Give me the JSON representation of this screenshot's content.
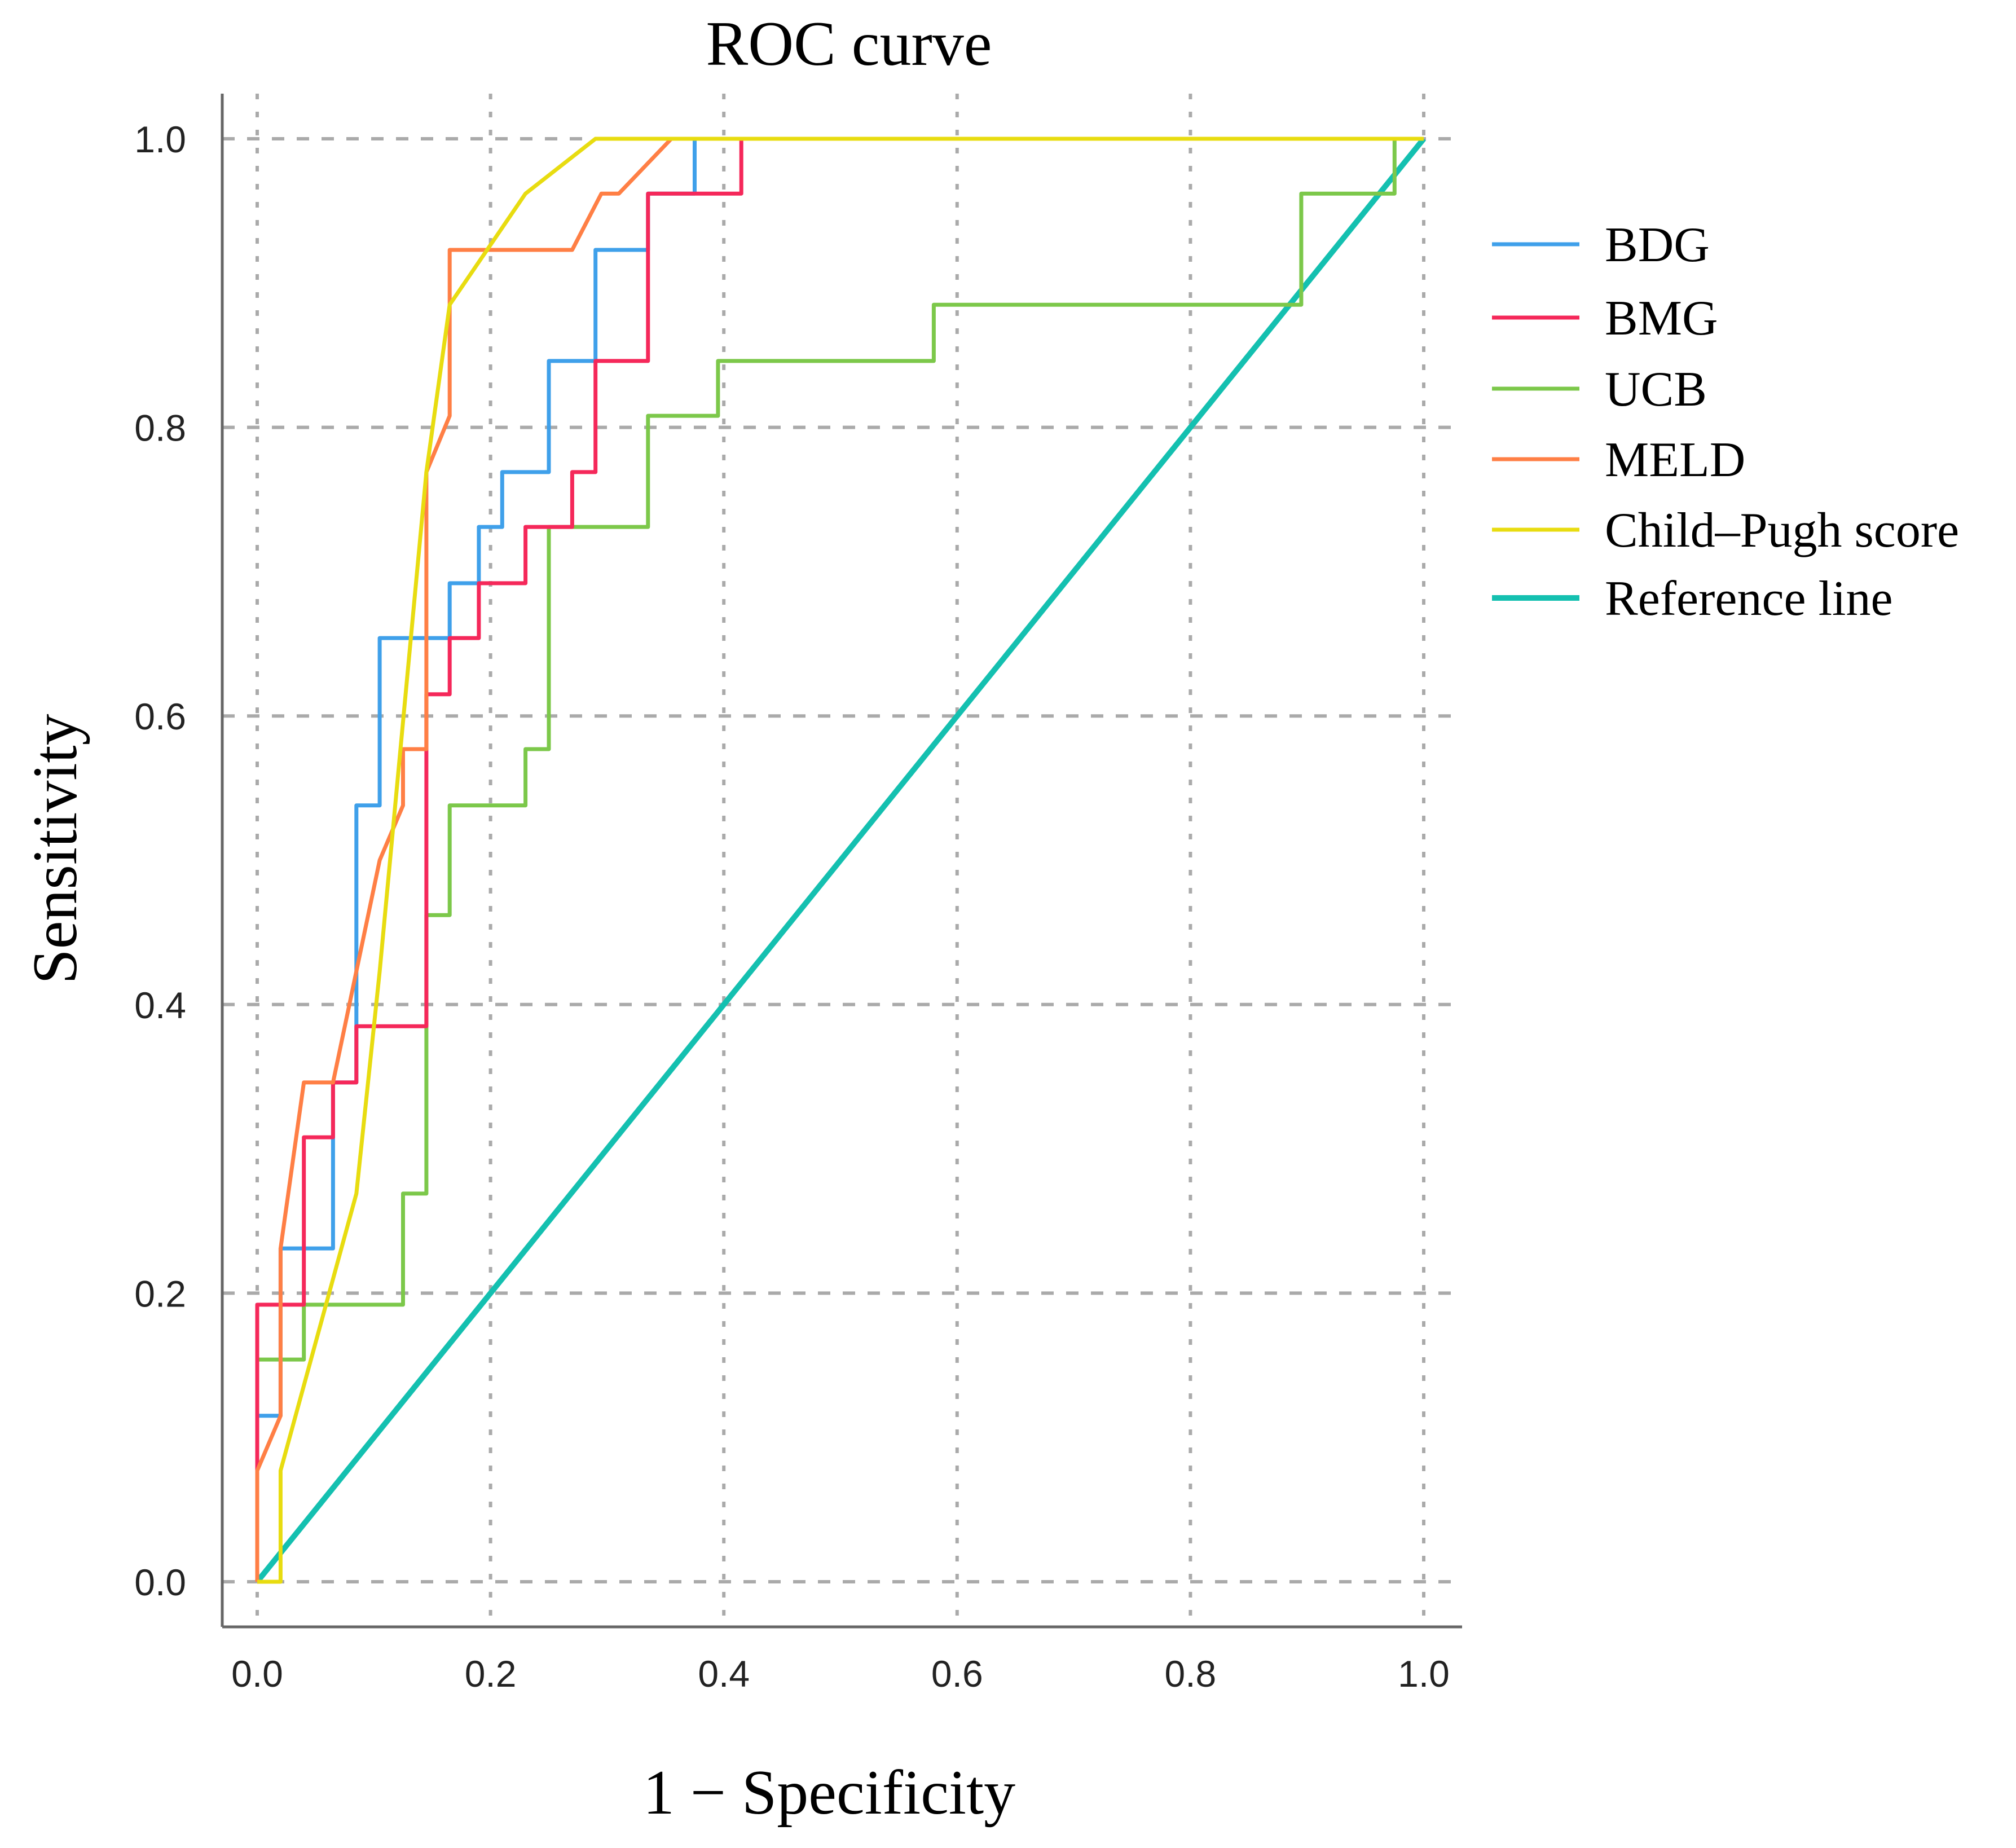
{
  "chart_data": {
    "type": "line",
    "title": "ROC curve",
    "xlabel": "1 − Specificity",
    "ylabel": "Sensitivity",
    "xlim": [
      0,
      1
    ],
    "ylim": [
      0,
      1
    ],
    "xticks": [
      "0.0",
      "0.2",
      "0.4",
      "0.6",
      "0.8",
      "1.0"
    ],
    "yticks": [
      "0.0",
      "0.2",
      "0.4",
      "0.6",
      "0.8",
      "1.0"
    ],
    "grid": true,
    "legend_position": "right",
    "series": [
      {
        "name": "BDG",
        "color": "#3fa0ea",
        "points": [
          [
            0,
            0
          ],
          [
            0,
            0.115
          ],
          [
            0.02,
            0.115
          ],
          [
            0.02,
            0.231
          ],
          [
            0.065,
            0.231
          ],
          [
            0.065,
            0.346
          ],
          [
            0.085,
            0.346
          ],
          [
            0.085,
            0.538
          ],
          [
            0.105,
            0.538
          ],
          [
            0.105,
            0.654
          ],
          [
            0.165,
            0.654
          ],
          [
            0.165,
            0.692
          ],
          [
            0.19,
            0.692
          ],
          [
            0.19,
            0.731
          ],
          [
            0.21,
            0.731
          ],
          [
            0.21,
            0.769
          ],
          [
            0.25,
            0.769
          ],
          [
            0.25,
            0.846
          ],
          [
            0.29,
            0.846
          ],
          [
            0.29,
            0.923
          ],
          [
            0.335,
            0.923
          ],
          [
            0.335,
            0.962
          ],
          [
            0.375,
            0.962
          ],
          [
            0.375,
            1
          ],
          [
            1,
            1
          ]
        ]
      },
      {
        "name": "BMG",
        "color": "#f5285a",
        "points": [
          [
            0,
            0
          ],
          [
            0,
            0.192
          ],
          [
            0.04,
            0.192
          ],
          [
            0.04,
            0.308
          ],
          [
            0.065,
            0.308
          ],
          [
            0.065,
            0.346
          ],
          [
            0.085,
            0.346
          ],
          [
            0.085,
            0.385
          ],
          [
            0.145,
            0.385
          ],
          [
            0.145,
            0.615
          ],
          [
            0.165,
            0.615
          ],
          [
            0.165,
            0.654
          ],
          [
            0.19,
            0.654
          ],
          [
            0.19,
            0.692
          ],
          [
            0.23,
            0.692
          ],
          [
            0.23,
            0.731
          ],
          [
            0.27,
            0.731
          ],
          [
            0.27,
            0.769
          ],
          [
            0.29,
            0.769
          ],
          [
            0.29,
            0.846
          ],
          [
            0.335,
            0.846
          ],
          [
            0.335,
            0.962
          ],
          [
            0.415,
            0.962
          ],
          [
            0.415,
            1
          ],
          [
            1,
            1
          ]
        ]
      },
      {
        "name": "UCB",
        "color": "#7cc84a",
        "points": [
          [
            0,
            0
          ],
          [
            0,
            0.154
          ],
          [
            0.04,
            0.154
          ],
          [
            0.04,
            0.192
          ],
          [
            0.125,
            0.192
          ],
          [
            0.125,
            0.269
          ],
          [
            0.145,
            0.269
          ],
          [
            0.145,
            0.462
          ],
          [
            0.165,
            0.462
          ],
          [
            0.165,
            0.538
          ],
          [
            0.23,
            0.538
          ],
          [
            0.23,
            0.577
          ],
          [
            0.25,
            0.577
          ],
          [
            0.25,
            0.731
          ],
          [
            0.335,
            0.731
          ],
          [
            0.335,
            0.808
          ],
          [
            0.395,
            0.808
          ],
          [
            0.395,
            0.846
          ],
          [
            0.58,
            0.846
          ],
          [
            0.58,
            0.885
          ],
          [
            0.895,
            0.885
          ],
          [
            0.895,
            0.962
          ],
          [
            0.975,
            0.962
          ],
          [
            0.975,
            1
          ],
          [
            1,
            1
          ]
        ]
      },
      {
        "name": "MELD",
        "color": "#ff7f45",
        "points": [
          [
            0,
            0
          ],
          [
            0,
            0.077
          ],
          [
            0.02,
            0.115
          ],
          [
            0.02,
            0.231
          ],
          [
            0.04,
            0.346
          ],
          [
            0.065,
            0.346
          ],
          [
            0.105,
            0.5
          ],
          [
            0.125,
            0.538
          ],
          [
            0.125,
            0.577
          ],
          [
            0.145,
            0.577
          ],
          [
            0.145,
            0.769
          ],
          [
            0.165,
            0.808
          ],
          [
            0.165,
            0.923
          ],
          [
            0.27,
            0.923
          ],
          [
            0.295,
            0.962
          ],
          [
            0.31,
            0.962
          ],
          [
            0.355,
            1
          ],
          [
            1,
            1
          ]
        ]
      },
      {
        "name": "Child–Pugh score",
        "color": "#e8dc10",
        "points": [
          [
            0,
            0
          ],
          [
            0.02,
            0
          ],
          [
            0.02,
            0.077
          ],
          [
            0.085,
            0.269
          ],
          [
            0.105,
            0.423
          ],
          [
            0.145,
            0.769
          ],
          [
            0.165,
            0.885
          ],
          [
            0.23,
            0.962
          ],
          [
            0.29,
            1
          ],
          [
            1,
            1
          ]
        ]
      },
      {
        "name": "Reference line",
        "color": "#14c0b0",
        "points": [
          [
            0,
            0
          ],
          [
            1,
            1
          ]
        ]
      }
    ]
  }
}
